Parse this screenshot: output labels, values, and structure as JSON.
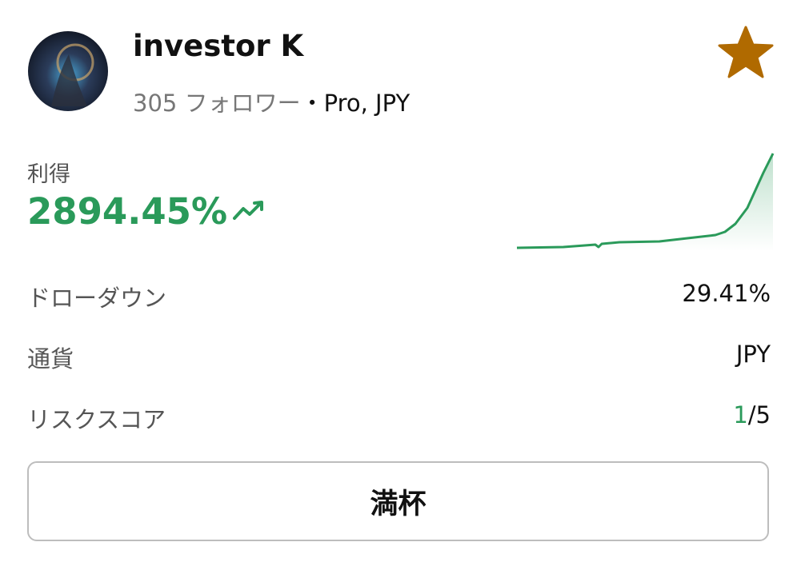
{
  "header": {
    "name": "investor K",
    "followers": "305 フォロワー",
    "separator": "・",
    "plan": "Pro, JPY"
  },
  "profit": {
    "label": "利得",
    "value": "2894.45%"
  },
  "stats": [
    {
      "label": "ドローダウン",
      "value": "29.41%"
    },
    {
      "label": "通貨",
      "value": "JPY"
    },
    {
      "label": "リスクスコア",
      "value": "1",
      "value_max": "/5"
    }
  ],
  "button": {
    "label": "満杯"
  }
}
